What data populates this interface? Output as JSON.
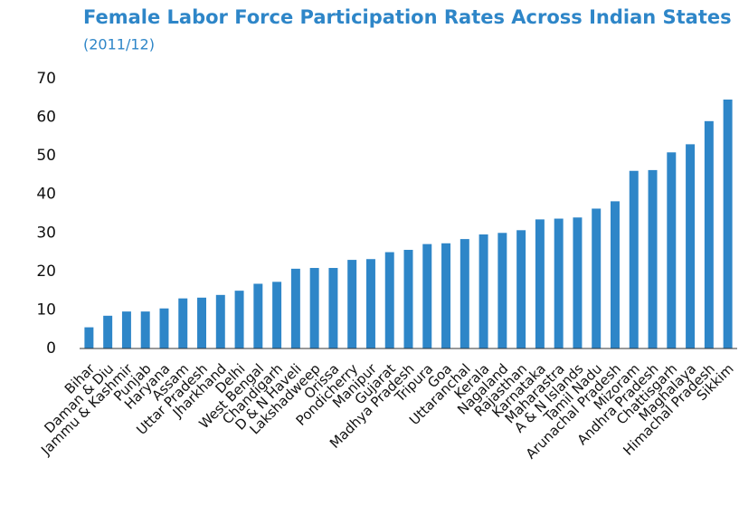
{
  "chart_data": {
    "type": "bar",
    "title": "Female Labor Force Participation Rates Across Indian States",
    "subtitle": "(2011/12)",
    "categories": [
      "Bihar",
      "Daman & Diu",
      "Jammu & Kashmir",
      "Punjab",
      "Haryana",
      "Assam",
      "Uttar Pradesh",
      "Jharkhand",
      "Delhi",
      "West Bengal",
      "Chandigarh",
      "D & N Haveli",
      "Lakshadweep",
      "Orissa",
      "Pondicherry",
      "Manipur",
      "Gujarat",
      "Madhya Pradesh",
      "Tripura",
      "Goa",
      "Uttaranchal",
      "Kerala",
      "Nagaland",
      "Rajasthan",
      "Karnataka",
      "Maharastra",
      "A & N Islands",
      "Tamil Nadu",
      "Arunachal Pradesh",
      "Mizoram",
      "Andhra Pradesh",
      "Chattisgarh",
      "Maghalaya",
      "Himachal Pradesh",
      "Sikkim"
    ],
    "values": [
      5.5,
      8.5,
      9.6,
      9.6,
      10.4,
      13,
      13.2,
      13.9,
      15,
      16.8,
      17.3,
      20.7,
      20.9,
      20.9,
      23,
      23.2,
      25,
      25.6,
      27.1,
      27.3,
      28.4,
      29.6,
      30,
      30.7,
      33.5,
      33.7,
      34,
      36.3,
      38.2,
      46.1,
      46.3,
      50.9,
      53,
      59,
      64.6
    ],
    "color": "#2e86c8",
    "ylim": [
      0,
      70
    ],
    "yticks": [
      0,
      10,
      20,
      30,
      40,
      50,
      60,
      70
    ],
    "grid": false
  }
}
